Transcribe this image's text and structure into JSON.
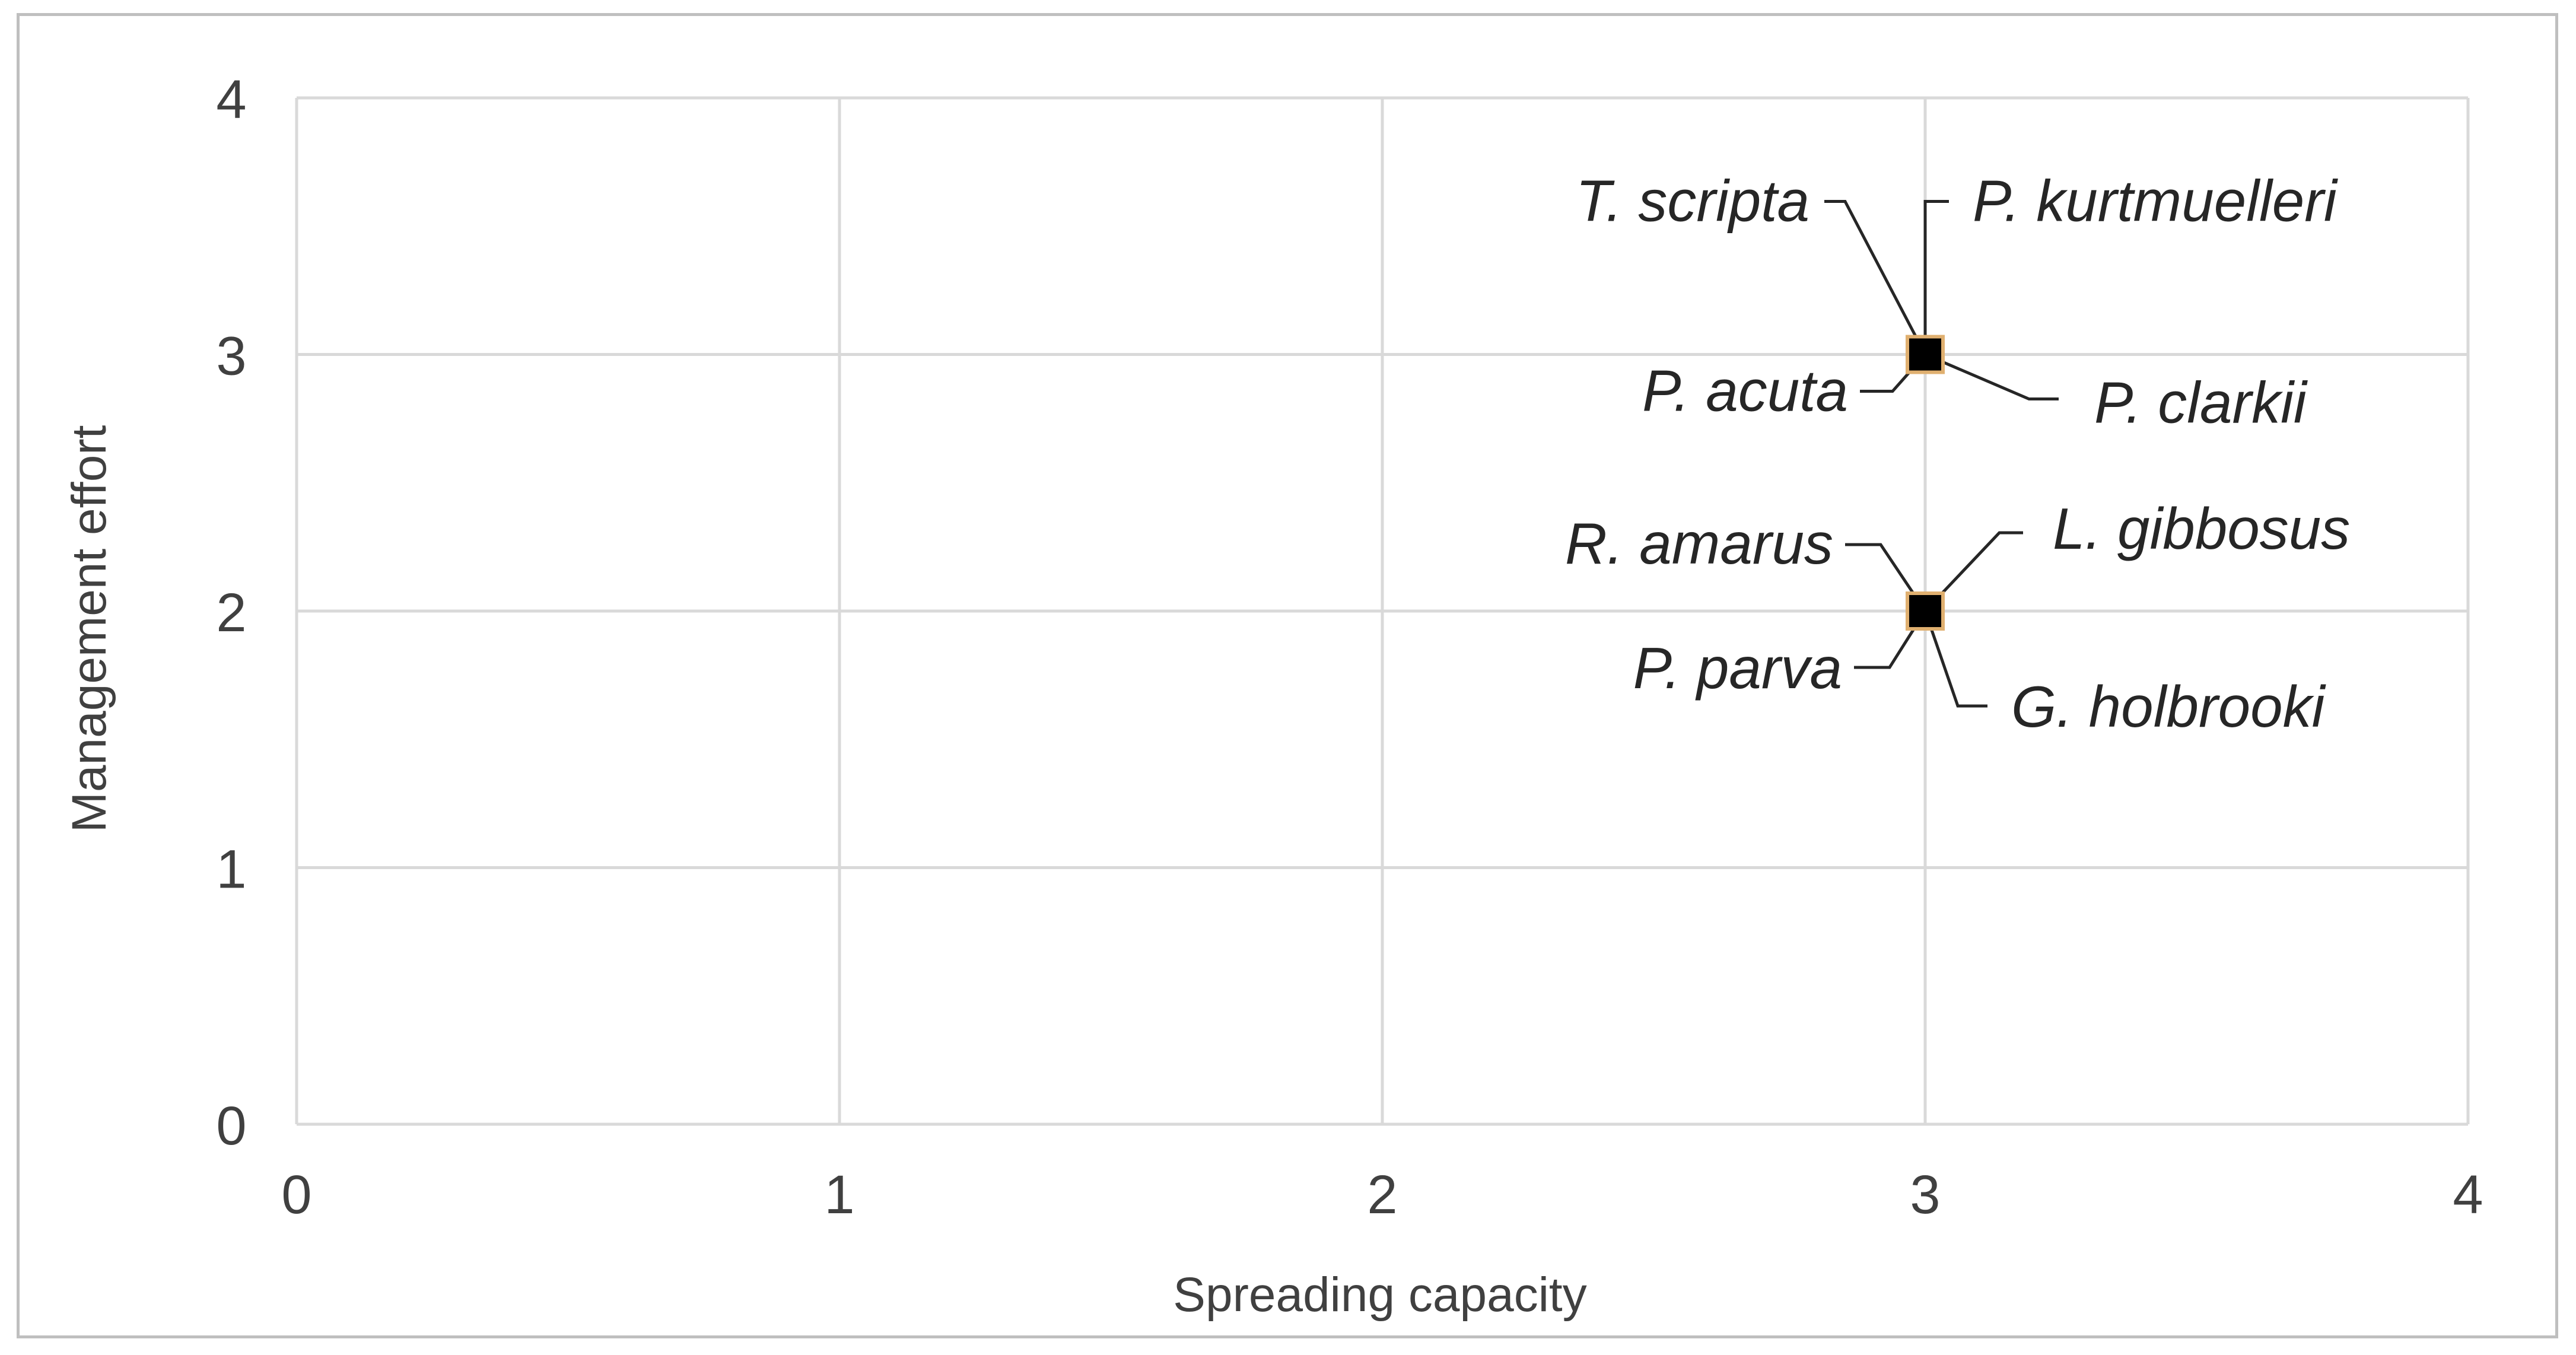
{
  "chart_data": {
    "type": "scatter",
    "xlabel": "Spreading capacity",
    "ylabel": "Management effort",
    "xlim": [
      0,
      4
    ],
    "ylim": [
      0,
      4
    ],
    "xticks": [
      "0",
      "1",
      "2",
      "3",
      "4"
    ],
    "yticks": [
      "0",
      "1",
      "2",
      "3",
      "4"
    ],
    "grid": true,
    "points": [
      {
        "x": 3,
        "y": 3,
        "labels": [
          "T. scripta",
          "P. kurtmuelleri",
          "P. acuta",
          "P. clarkii"
        ]
      },
      {
        "x": 3,
        "y": 2,
        "labels": [
          "R. amarus",
          "L. gibbosus",
          "P. parva",
          "G. holbrooki"
        ]
      }
    ],
    "colors": {
      "marker": "#000000",
      "marker_edge": "#e0b070",
      "grid": "#d9d9d9",
      "text": "#404040"
    }
  }
}
